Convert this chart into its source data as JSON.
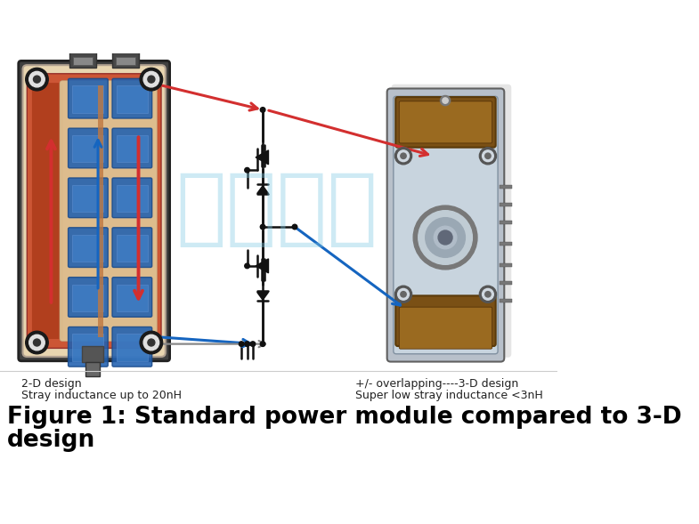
{
  "bg_color": "#ffffff",
  "figure_width": 7.85,
  "figure_height": 5.89,
  "dpi": 100,
  "title_line1": "Figure 1: Standard power module compared to 3-D",
  "title_line2": "design",
  "title_fontsize": 19,
  "title_bold": true,
  "label_left_line1": "2-D design",
  "label_left_line2": "Stray inductance up to 20nH",
  "label_right_line1": "+/- overlapping----3-D design",
  "label_right_line2": "Super low stray inductance <3nH",
  "label_fontsize": 9,
  "watermark_text": "欧知电子",
  "watermark_color": "#7ec8e3",
  "watermark_alpha": 0.38,
  "watermark_fontsize": 68,
  "arrow_red_color": "#d32f2f",
  "arrow_blue_color": "#1565c0",
  "arrow_gray_color": "#888888"
}
